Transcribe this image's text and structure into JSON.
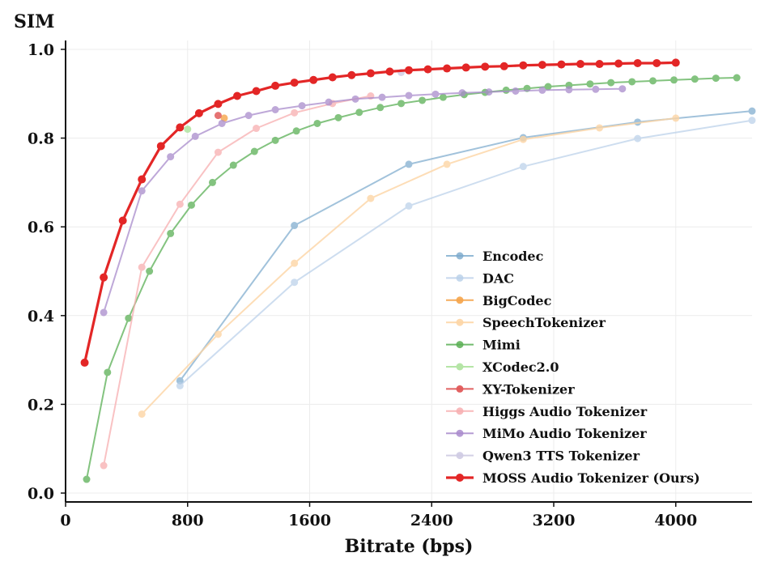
{
  "chart_data": {
    "type": "line",
    "title": "",
    "xlabel": "Bitrate (bps)",
    "ylabel": "SIM",
    "xlim": [
      0,
      4500
    ],
    "ylim": [
      -0.02,
      1.02
    ],
    "xticks": [
      0,
      800,
      1600,
      2400,
      3200,
      4000
    ],
    "xtick_labels": [
      "0",
      "800",
      "1600",
      "2400",
      "3200",
      "4000"
    ],
    "yticks": [
      0.0,
      0.2,
      0.4,
      0.6,
      0.8,
      1.0
    ],
    "ytick_labels": [
      "0.0",
      "0.2",
      "0.4",
      "0.6",
      "0.8",
      "1.0"
    ],
    "grid": true,
    "legend_position": "lower-right",
    "series": [
      {
        "name": "Encodec",
        "color": "#7aa9cc",
        "alpha": 0.7,
        "width": 2,
        "highlight": false,
        "x": [
          750,
          1500,
          2250,
          3000,
          3750,
          4500
        ],
        "y": [
          0.253,
          0.603,
          0.741,
          0.801,
          0.836,
          0.861
        ]
      },
      {
        "name": "DAC",
        "color": "#b8cfe9",
        "alpha": 0.7,
        "width": 2,
        "highlight": false,
        "x": [
          750,
          1500,
          2250,
          3000,
          3750,
          4500
        ],
        "y": [
          0.242,
          0.475,
          0.647,
          0.736,
          0.799,
          0.84
        ]
      },
      {
        "name": "BigCodec",
        "color": "#f5a44a",
        "alpha": 0.8,
        "width": 2,
        "highlight": false,
        "x": [
          1040
        ],
        "y": [
          0.845
        ]
      },
      {
        "name": "SpeechTokenizer",
        "color": "#fdd5a5",
        "alpha": 0.8,
        "width": 2,
        "highlight": false,
        "x": [
          500,
          1000,
          1500,
          2000,
          2500,
          3000,
          3500,
          4000
        ],
        "y": [
          0.178,
          0.358,
          0.518,
          0.664,
          0.741,
          0.797,
          0.823,
          0.845
        ]
      },
      {
        "name": "Mimi",
        "color": "#5aaf55",
        "alpha": 0.75,
        "width": 2,
        "highlight": false,
        "x": [
          138,
          275,
          413,
          550,
          688,
          825,
          963,
          1100,
          1238,
          1375,
          1513,
          1650,
          1788,
          1925,
          2063,
          2200,
          2338,
          2475,
          2613,
          2750,
          2888,
          3025,
          3163,
          3300,
          3438,
          3575,
          3713,
          3850,
          3988,
          4125,
          4263,
          4400
        ],
        "y": [
          0.031,
          0.272,
          0.394,
          0.5,
          0.585,
          0.649,
          0.7,
          0.739,
          0.77,
          0.795,
          0.816,
          0.833,
          0.846,
          0.858,
          0.869,
          0.878,
          0.885,
          0.892,
          0.898,
          0.903,
          0.908,
          0.912,
          0.916,
          0.919,
          0.922,
          0.925,
          0.927,
          0.929,
          0.931,
          0.933,
          0.935,
          0.936
        ]
      },
      {
        "name": "XCodec2.0",
        "color": "#b5e5a6",
        "alpha": 0.9,
        "width": 2,
        "highlight": false,
        "x": [
          800
        ],
        "y": [
          0.82
        ]
      },
      {
        "name": "XY-Tokenizer",
        "color": "#e05a5a",
        "alpha": 0.85,
        "width": 2,
        "highlight": false,
        "x": [
          1000
        ],
        "y": [
          0.851
        ]
      },
      {
        "name": "Higgs Audio Tokenizer",
        "color": "#f7aeb0",
        "alpha": 0.75,
        "width": 2,
        "highlight": false,
        "x": [
          250,
          500,
          750,
          1000,
          1250,
          1500,
          1750,
          2000
        ],
        "y": [
          0.062,
          0.509,
          0.651,
          0.768,
          0.822,
          0.857,
          0.878,
          0.895
        ]
      },
      {
        "name": "MiMo Audio Tokenizer",
        "color": "#a98bcc",
        "alpha": 0.75,
        "width": 2,
        "highlight": false,
        "x": [
          250,
          500,
          688,
          850,
          1025,
          1200,
          1375,
          1550,
          1725,
          1900,
          2075,
          2250,
          2425,
          2600,
          2775,
          2950,
          3125,
          3300,
          3475,
          3650
        ],
        "y": [
          0.407,
          0.681,
          0.758,
          0.804,
          0.833,
          0.851,
          0.864,
          0.873,
          0.881,
          0.888,
          0.892,
          0.896,
          0.899,
          0.902,
          0.904,
          0.906,
          0.908,
          0.909,
          0.91,
          0.911
        ]
      },
      {
        "name": "Qwen3 TTS Tokenizer",
        "color": "#cfcbe3",
        "alpha": 0.8,
        "width": 2,
        "highlight": false,
        "x": [
          2200
        ],
        "y": [
          0.948
        ]
      },
      {
        "name": "MOSS Audio Tokenizer (Ours)",
        "color": "#e32626",
        "alpha": 1.0,
        "width": 3.2,
        "highlight": true,
        "x": [
          125,
          250,
          375,
          500,
          625,
          750,
          875,
          1000,
          1125,
          1250,
          1375,
          1500,
          1625,
          1750,
          1875,
          2000,
          2125,
          2250,
          2375,
          2500,
          2625,
          2750,
          2875,
          3000,
          3125,
          3250,
          3375,
          3500,
          3625,
          3750,
          3875,
          4000
        ],
        "y": [
          0.294,
          0.486,
          0.614,
          0.707,
          0.782,
          0.824,
          0.856,
          0.877,
          0.895,
          0.906,
          0.918,
          0.925,
          0.931,
          0.937,
          0.942,
          0.946,
          0.95,
          0.953,
          0.955,
          0.957,
          0.959,
          0.961,
          0.962,
          0.964,
          0.965,
          0.966,
          0.967,
          0.967,
          0.968,
          0.969,
          0.969,
          0.97
        ]
      }
    ]
  }
}
